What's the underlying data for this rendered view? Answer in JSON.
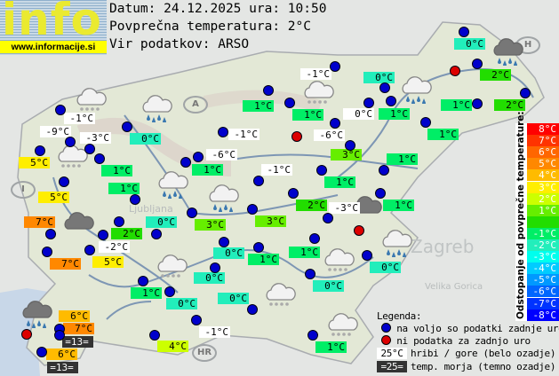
{
  "logo": {
    "word": "info",
    "url": "www.informacije.si"
  },
  "header": {
    "date_line": "Datum: 24.12.2025 ura: 10:50",
    "average_line": "Povprečna temperatura: 2°C",
    "source_line": "Vir podatkov: ARSO"
  },
  "average_temperature": 2,
  "map_labels": {
    "zagreb": "Zagreb",
    "velika_gorica": "Velika Gorica",
    "ljubljana": "Ljubljana",
    "austria": "A",
    "italy": "I",
    "croatia": "HR",
    "hungary": "H"
  },
  "stations": [
    {
      "temp": "-1°C",
      "kind": "mountain"
    },
    {
      "temp": "-9°C",
      "kind": "mountain"
    },
    {
      "temp": "-3°C",
      "kind": "mountain"
    },
    {
      "temp": "5°C",
      "kind": "normal"
    },
    {
      "temp": "0°C",
      "kind": "normal"
    },
    {
      "temp": "1°C",
      "kind": "normal"
    },
    {
      "temp": "1°C",
      "kind": "normal"
    },
    {
      "temp": "5°C",
      "kind": "normal"
    },
    {
      "temp": "7°C",
      "kind": "normal"
    },
    {
      "temp": "0°C",
      "kind": "normal"
    },
    {
      "temp": "2°C",
      "kind": "normal"
    },
    {
      "temp": "-2°C",
      "kind": "mountain"
    },
    {
      "temp": "7°C",
      "kind": "normal"
    },
    {
      "temp": "5°C",
      "kind": "normal"
    },
    {
      "temp": "-1°C",
      "kind": "mountain"
    },
    {
      "temp": "0°C",
      "kind": "normal"
    },
    {
      "temp": "1°C",
      "kind": "normal"
    },
    {
      "temp": "1°C",
      "kind": "normal"
    },
    {
      "temp": "0°C",
      "kind": "mountain"
    },
    {
      "temp": "1°C",
      "kind": "normal"
    },
    {
      "temp": "-1°C",
      "kind": "mountain"
    },
    {
      "temp": "-6°C",
      "kind": "mountain"
    },
    {
      "temp": "3°C",
      "kind": "normal"
    },
    {
      "temp": "-6°C",
      "kind": "mountain"
    },
    {
      "temp": "1°C",
      "kind": "normal"
    },
    {
      "temp": "-1°C",
      "kind": "mountain"
    },
    {
      "temp": "1°C",
      "kind": "normal"
    },
    {
      "temp": "2°C",
      "kind": "normal"
    },
    {
      "temp": "-3°C",
      "kind": "mountain"
    },
    {
      "temp": "3°C",
      "kind": "normal"
    },
    {
      "temp": "3°C",
      "kind": "normal"
    },
    {
      "temp": "1°C",
      "kind": "normal"
    },
    {
      "temp": "1°C",
      "kind": "normal"
    },
    {
      "temp": "0°C",
      "kind": "normal"
    },
    {
      "temp": "2°C",
      "kind": "normal"
    },
    {
      "temp": "2°C",
      "kind": "normal"
    },
    {
      "temp": "1°C",
      "kind": "normal"
    },
    {
      "temp": "1°C",
      "kind": "normal"
    },
    {
      "temp": "0°C",
      "kind": "normal"
    },
    {
      "temp": "1°C",
      "kind": "normal"
    },
    {
      "temp": "1°C",
      "kind": "normal"
    },
    {
      "temp": "0°C",
      "kind": "normal"
    },
    {
      "temp": "0°C",
      "kind": "normal"
    },
    {
      "temp": "0°C",
      "kind": "normal"
    },
    {
      "temp": "1°C",
      "kind": "normal"
    },
    {
      "temp": "0°C",
      "kind": "normal"
    },
    {
      "temp": "0°C",
      "kind": "normal"
    },
    {
      "temp": "-1°C",
      "kind": "mountain"
    },
    {
      "temp": "4°C",
      "kind": "normal"
    },
    {
      "temp": "1°C",
      "kind": "normal"
    },
    {
      "temp": "6°C",
      "kind": "normal"
    },
    {
      "temp": "7°C",
      "kind": "normal"
    },
    {
      "temp": "=13=",
      "kind": "sea"
    },
    {
      "temp": "6°C",
      "kind": "normal"
    },
    {
      "temp": "=13=",
      "kind": "sea"
    }
  ],
  "no_data_station_count": 4,
  "weather_icons": [
    "cloud-snow",
    "cloud-rain",
    "cloud-snow",
    "cloud-rain",
    "cloud-dark",
    "cloud-snow",
    "cloud-rain",
    "cloud-dark-rain",
    "cloud-dark",
    "cloud-rain",
    "cloud-snow",
    "cloud-snow",
    "cloud-snow",
    "cloud-snow",
    "cloud-dark-rain",
    "cloud-rain"
  ],
  "scale": {
    "title": "Odstopanje od povprečne temperature:",
    "rows": [
      {
        "label": "8°C",
        "color": "#ff0000"
      },
      {
        "label": "7°C",
        "color": "#ff3300"
      },
      {
        "label": "6°C",
        "color": "#ff6600"
      },
      {
        "label": "5°C",
        "color": "#ff8800"
      },
      {
        "label": "4°C",
        "color": "#ffbb00"
      },
      {
        "label": "3°C",
        "color": "#ffee00"
      },
      {
        "label": "2°C",
        "color": "#ccff00"
      },
      {
        "label": "1°C",
        "color": "#66ee00"
      },
      {
        "label": "",
        "color": "#22dd00"
      },
      {
        "label": "-1°C",
        "color": "#00ee66"
      },
      {
        "label": "-2°C",
        "color": "#22eebb"
      },
      {
        "label": "-3°C",
        "color": "#00ffee"
      },
      {
        "label": "-4°C",
        "color": "#00ccff"
      },
      {
        "label": "-5°C",
        "color": "#0099ff"
      },
      {
        "label": "-6°C",
        "color": "#0066ff"
      },
      {
        "label": "-7°C",
        "color": "#0033ff"
      },
      {
        "label": "-8°C",
        "color": "#0000ff"
      }
    ]
  },
  "legend": {
    "title": "Legenda:",
    "available": "na voljo so podatki zadnje ure",
    "no_data": "ni podatka za zadnjo uro",
    "mountain_sample": "25°C",
    "mountain_text": "hribi / gore (belo ozadje)",
    "sea_sample": "=25=",
    "sea_text": "temp. morja (temno ozadje)",
    "available_color": "#0000cc",
    "no_data_color": "#dd0000"
  }
}
